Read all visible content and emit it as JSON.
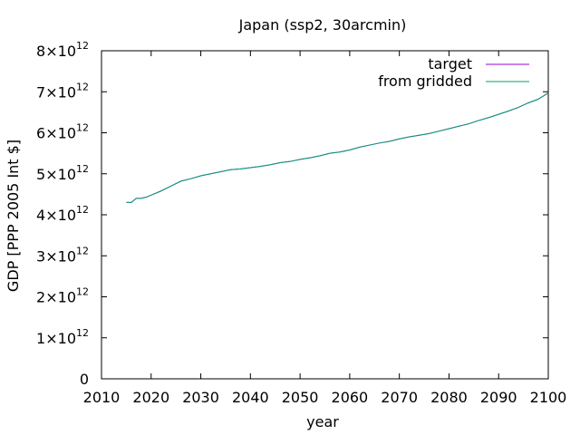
{
  "chart_data": {
    "type": "line",
    "title": "Japan (ssp2, 30arcmin)",
    "xlabel": "year",
    "ylabel": "GDP [PPP 2005 Int $]",
    "xlim": [
      2010,
      2100
    ],
    "ylim": [
      0,
      8
    ],
    "y_tick_multiplier": "×10",
    "y_tick_exponent": "12",
    "x_ticks": [
      "2010",
      "2020",
      "2030",
      "2040",
      "2050",
      "2060",
      "2070",
      "2080",
      "2090",
      "2100"
    ],
    "y_ticks": [
      {
        "value": 0,
        "mantissa": "0",
        "exp": ""
      },
      {
        "value": 1,
        "mantissa": "1",
        "exp": "12"
      },
      {
        "value": 2,
        "mantissa": "2",
        "exp": "12"
      },
      {
        "value": 3,
        "mantissa": "3",
        "exp": "12"
      },
      {
        "value": 4,
        "mantissa": "4",
        "exp": "12"
      },
      {
        "value": 5,
        "mantissa": "5",
        "exp": "12"
      },
      {
        "value": 6,
        "mantissa": "6",
        "exp": "12"
      },
      {
        "value": 7,
        "mantissa": "7",
        "exp": "12"
      },
      {
        "value": 8,
        "mantissa": "8",
        "exp": "12"
      }
    ],
    "grid": false,
    "legend_position": "top-right",
    "series": [
      {
        "name": "target",
        "color": "#9400d3",
        "x": [
          2015,
          2016,
          2017,
          2018,
          2019,
          2020,
          2022,
          2024,
          2026,
          2028,
          2030,
          2032,
          2034,
          2036,
          2038,
          2040,
          2042,
          2044,
          2046,
          2048,
          2050,
          2052,
          2054,
          2056,
          2058,
          2060,
          2062,
          2064,
          2066,
          2068,
          2070,
          2072,
          2074,
          2076,
          2078,
          2080,
          2082,
          2084,
          2086,
          2088,
          2090,
          2092,
          2094,
          2096,
          2098,
          2100
        ],
        "y": [
          4.3,
          4.3,
          4.4,
          4.4,
          4.43,
          4.48,
          4.58,
          4.7,
          4.82,
          4.88,
          4.95,
          5.0,
          5.05,
          5.1,
          5.12,
          5.15,
          5.18,
          5.22,
          5.27,
          5.3,
          5.35,
          5.39,
          5.44,
          5.5,
          5.53,
          5.58,
          5.65,
          5.7,
          5.75,
          5.79,
          5.85,
          5.9,
          5.94,
          5.98,
          6.04,
          6.1,
          6.16,
          6.22,
          6.3,
          6.37,
          6.45,
          6.53,
          6.62,
          6.73,
          6.82,
          6.97
        ]
      },
      {
        "name": "from gridded",
        "color": "#009e73",
        "x": [
          2015,
          2016,
          2017,
          2018,
          2019,
          2020,
          2022,
          2024,
          2026,
          2028,
          2030,
          2032,
          2034,
          2036,
          2038,
          2040,
          2042,
          2044,
          2046,
          2048,
          2050,
          2052,
          2054,
          2056,
          2058,
          2060,
          2062,
          2064,
          2066,
          2068,
          2070,
          2072,
          2074,
          2076,
          2078,
          2080,
          2082,
          2084,
          2086,
          2088,
          2090,
          2092,
          2094,
          2096,
          2098,
          2100
        ],
        "y": [
          4.3,
          4.3,
          4.4,
          4.4,
          4.43,
          4.48,
          4.58,
          4.7,
          4.82,
          4.88,
          4.95,
          5.0,
          5.05,
          5.1,
          5.12,
          5.15,
          5.18,
          5.22,
          5.27,
          5.3,
          5.35,
          5.39,
          5.44,
          5.5,
          5.53,
          5.58,
          5.65,
          5.7,
          5.75,
          5.79,
          5.85,
          5.9,
          5.94,
          5.98,
          6.04,
          6.1,
          6.16,
          6.22,
          6.3,
          6.37,
          6.45,
          6.53,
          6.62,
          6.73,
          6.82,
          6.97
        ]
      }
    ]
  }
}
